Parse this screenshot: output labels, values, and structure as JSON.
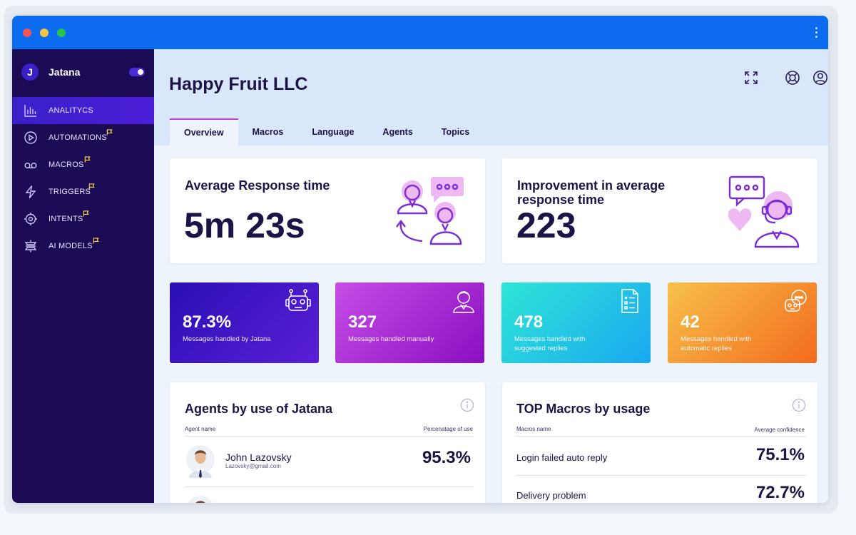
{
  "app": {
    "brand_letter": "J",
    "brand_name": "Jatana"
  },
  "sidebar": {
    "items": [
      {
        "label": "ANALITYCS",
        "icon": "bar-chart-icon",
        "active": true
      },
      {
        "label": "AUTOMATIONS",
        "icon": "play-circle-icon",
        "flag": true
      },
      {
        "label": "MACROS",
        "icon": "voicemail-icon",
        "flag": true
      },
      {
        "label": "TRIGGERS",
        "icon": "lightning-icon",
        "flag": true
      },
      {
        "label": "INTENTS",
        "icon": "target-icon",
        "flag": true
      },
      {
        "label": "AI MODELS",
        "icon": "ai-layers-icon",
        "flag": true
      }
    ]
  },
  "header": {
    "title": "Happy Fruit LLC",
    "icons": [
      "fullscreen-icon",
      "lifebuoy-icon",
      "user-circle-icon"
    ],
    "tabs": [
      "Overview",
      "Macros",
      "Language",
      "Agents",
      "Topics"
    ]
  },
  "kpis": {
    "response_time": {
      "title": "Average Response time",
      "value": "5m 23s"
    },
    "improvement": {
      "title_line1": "Improvement in average",
      "title_line2": "response time",
      "value": "223"
    }
  },
  "stats": [
    {
      "value": "87.3%",
      "label": "Messages handled by Jatana",
      "icon": "robot-icon",
      "gradient": [
        "#2a0fb5",
        "#5a1fd6"
      ]
    },
    {
      "value": "327",
      "label": "Messages handled manually",
      "icon": "agent-icon",
      "gradient": [
        "#c64de6",
        "#8a0fc2"
      ]
    },
    {
      "value": "478",
      "label_line1": "Messages handled with",
      "label_line2": "suggested replies",
      "icon": "document-icon",
      "gradient": [
        "#2ee6d6",
        "#1aa7f0"
      ]
    },
    {
      "value": "42",
      "label_line1": "Messages handled with",
      "label_line2": "automatic replies",
      "icon": "bot-chat-icon",
      "gradient": [
        "#f6c14a",
        "#f46b1e"
      ]
    }
  ],
  "agents": {
    "title": "Agents by use of Jatana",
    "col_name": "Agent name",
    "col_value": "Percenatage of use",
    "rows": [
      {
        "name": "John Lazovsky",
        "email": "Lazovsky@gmail.com",
        "value": "95.3%"
      }
    ]
  },
  "macros": {
    "title": "TOP Macros by usage",
    "col_name": "Macros name",
    "col_value": "Average confidence",
    "rows": [
      {
        "name": "Login failed auto reply",
        "value": "75.1%"
      },
      {
        "name": "Delivery problem",
        "value": "72.7%"
      }
    ]
  },
  "colors": {
    "accent": "#3a1fc8",
    "sidebar": "#1d0a55",
    "titlebar": "#0b6cf0",
    "illustration": "#7b2fd1"
  }
}
